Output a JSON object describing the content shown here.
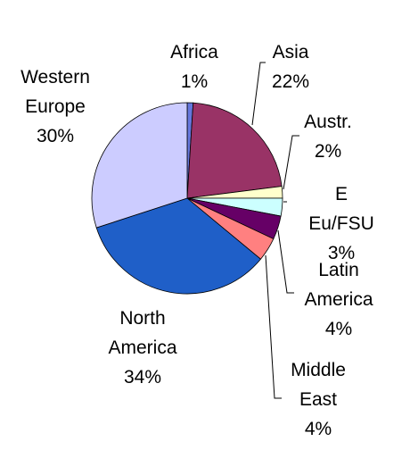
{
  "chart_data": {
    "type": "pie",
    "categories": [
      "Africa",
      "Asia",
      "Austr.",
      "E Eu/FSU",
      "Latin\nAmerica",
      "Middle\nEast",
      "North\nAmerica",
      "Western\nEurope"
    ],
    "values": [
      1,
      22,
      2,
      3,
      4,
      4,
      34,
      30
    ],
    "value_labels": [
      "1%",
      "22%",
      "2%",
      "3%",
      "4%",
      "4%",
      "34%",
      "30%"
    ],
    "colors": [
      "#6677dd",
      "#993366",
      "#ffffcc",
      "#ccffff",
      "#660066",
      "#ff8080",
      "#1f5fc8",
      "#ccccff"
    ]
  }
}
